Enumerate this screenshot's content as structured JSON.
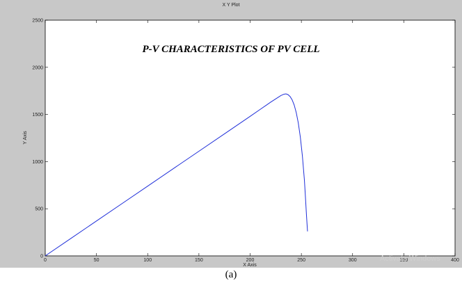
{
  "window": {
    "title": "X Y Plot"
  },
  "watermark": {
    "text": "Activate Windows"
  },
  "caption": "(a)",
  "colors": {
    "frame": "#c8c8c8",
    "plot_bg": "#ffffff",
    "curve": "#1f2fd9"
  },
  "chart_data": {
    "type": "line",
    "title": "P-V CHARACTERISTICS OF PV CELL",
    "xlabel": "X Axis",
    "ylabel": "Y Axis",
    "xlim": [
      0,
      400
    ],
    "ylim": [
      0,
      2500
    ],
    "xticks": [
      0,
      50,
      100,
      150,
      200,
      250,
      300,
      350,
      400
    ],
    "yticks": [
      0,
      500,
      1000,
      1500,
      2000,
      2500
    ],
    "grid": false,
    "series": [
      {
        "x": [
          0,
          25,
          50,
          75,
          100,
          125,
          150,
          175,
          200,
          210,
          220,
          225,
          230,
          233,
          235,
          237,
          239,
          241,
          243,
          245,
          247,
          249,
          251,
          253,
          254,
          255,
          256
        ],
        "values": [
          0,
          185,
          370,
          555,
          740,
          925,
          1110,
          1295,
          1480,
          1555,
          1630,
          1665,
          1700,
          1715,
          1718,
          1710,
          1690,
          1655,
          1600,
          1520,
          1410,
          1260,
          1060,
          800,
          620,
          430,
          260
        ]
      }
    ]
  }
}
